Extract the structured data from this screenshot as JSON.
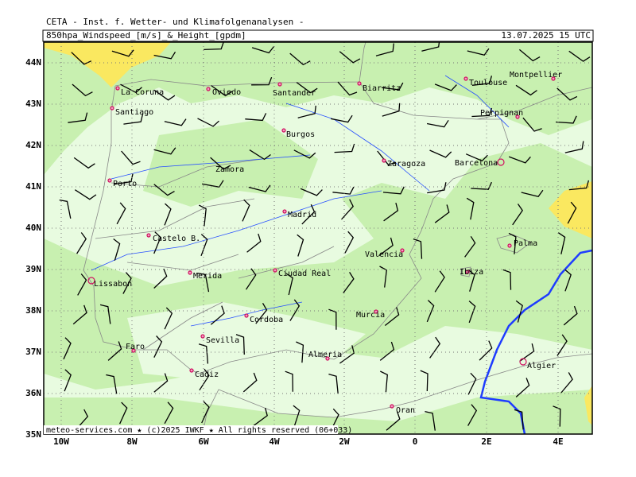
{
  "header": {
    "title": "CETA - Inst. f. Wetter- und Klimafolgenanalysen -",
    "product": "850hpa_Windspeed_[m/s]_&_Height_[gpdm]",
    "valid_time": "13.07.2025 15 UTC"
  },
  "map": {
    "lat_labels": [
      "44N",
      "43N",
      "42N",
      "41N",
      "40N",
      "39N",
      "38N",
      "37N",
      "36N",
      "35N"
    ],
    "lon_labels": [
      "10W",
      "8W",
      "6W",
      "4W",
      "2W",
      "0",
      "2E",
      "4E"
    ],
    "places": [
      "La Coruna",
      "Oviedo",
      "Santander",
      "Biarritz",
      "Toulouse",
      "Montpellier",
      "Santiago",
      "Perpignan",
      "Burgos",
      "Zaragoza",
      "Barcelona",
      "Zamora",
      "Porto",
      "Madrid",
      "Castelo B.",
      "Palma",
      "Valencia",
      "Ciudad Real",
      "Merida",
      "Lissabon",
      "Ibiza",
      "Murcia",
      "Cordoba",
      "Sevilla",
      "Faro",
      "Almeria",
      "Algier",
      "Cadiz",
      "Oran"
    ]
  },
  "footer": "meteo-services.com ★ (c)2025 IWKF ★ All rights reserved (06+033)"
}
